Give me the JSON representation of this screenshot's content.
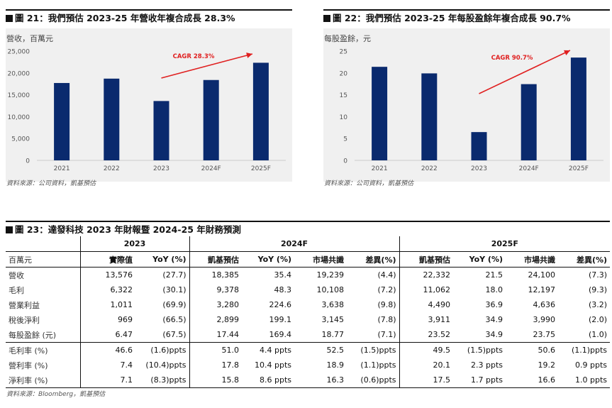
{
  "fig21": {
    "title": "圖 21：我們預估 2023-25 年營收年複合成長 28.3%",
    "unit": "營收，百萬元",
    "source": "資料來源：公司資料，凱基預估",
    "annotation": "CAGR 28.3%",
    "bar_color": "#0a2a6e",
    "arrow_color": "#e02020",
    "yticks": [
      "25,000",
      "20,000",
      "15,000",
      "10,000",
      "5,000",
      "0"
    ]
  },
  "fig22": {
    "title": "圖 22：我們預估 2023-25 年每股盈餘年複合成長 90.7%",
    "unit": "每股盈餘，元",
    "source": "資料來源：公司資料，凱基預估",
    "annotation": "CAGR 90.7%",
    "yticks": [
      "25",
      "20",
      "15",
      "10",
      "5",
      "0"
    ]
  },
  "chart_data": [
    {
      "type": "bar",
      "title": "圖 21：我們預估 2023-25 年營收年複合成長 28.3%",
      "ylabel": "營收，百萬元",
      "categories": [
        "2021",
        "2022",
        "2023",
        "2024F",
        "2025F"
      ],
      "values": [
        17700,
        18700,
        13576,
        18385,
        22332
      ],
      "ylim": [
        0,
        25000
      ],
      "grid": false,
      "annotation": "CAGR 28.3%"
    },
    {
      "type": "bar",
      "title": "圖 22：我們預估 2023-25 年每股盈餘年複合成長 90.7%",
      "ylabel": "每股盈餘，元",
      "categories": [
        "2021",
        "2022",
        "2023",
        "2024F",
        "2025F"
      ],
      "values": [
        21.4,
        19.9,
        6.47,
        17.44,
        23.52
      ],
      "ylim": [
        0,
        25
      ],
      "grid": false,
      "annotation": "CAGR 90.7%"
    }
  ],
  "table23": {
    "title": "圖 23：達發科技 2023 年財報暨 2024-25 年財務預測",
    "source": "資料來源：Bloomberg，凱基預估",
    "groups": [
      "2023",
      "2024F",
      "2025F"
    ],
    "unit_label": "百萬元",
    "columns": [
      "實際值",
      "YoY (%)",
      "凱基預估",
      "YoY (%)",
      "市場共識",
      "差異(%)",
      "凱基預估",
      "YoY (%)",
      "市場共識",
      "差異(%)"
    ],
    "rows": [
      {
        "label": "營收",
        "cells": [
          "13,576",
          "(27.7)",
          "18,385",
          "35.4",
          "19,239",
          "(4.4)",
          "22,332",
          "21.5",
          "24,100",
          "(7.3)"
        ]
      },
      {
        "label": "毛利",
        "cells": [
          "6,322",
          "(30.1)",
          "9,378",
          "48.3",
          "10,108",
          "(7.2)",
          "11,062",
          "18.0",
          "12,197",
          "(9.3)"
        ]
      },
      {
        "label": "營業利益",
        "cells": [
          "1,011",
          "(69.9)",
          "3,280",
          "224.6",
          "3,638",
          "(9.8)",
          "4,490",
          "36.9",
          "4,636",
          "(3.2)"
        ]
      },
      {
        "label": "稅後淨利",
        "cells": [
          "969",
          "(66.5)",
          "2,899",
          "199.1",
          "3,145",
          "(7.8)",
          "3,911",
          "34.9",
          "3,990",
          "(2.0)"
        ]
      },
      {
        "label": "每股盈餘 (元)",
        "cells": [
          "6.47",
          "(67.5)",
          "17.44",
          "169.4",
          "18.77",
          "(7.1)",
          "23.52",
          "34.9",
          "23.75",
          "(1.0)"
        ]
      },
      {
        "label": "毛利率 (%)",
        "cells": [
          "46.6",
          "(1.6)ppts",
          "51.0",
          "4.4 ppts",
          "52.5",
          "(1.5)ppts",
          "49.5",
          "(1.5)ppts",
          "50.6",
          "(1.1)ppts"
        ]
      },
      {
        "label": "營利率 (%)",
        "cells": [
          "7.4",
          "(10.4)ppts",
          "17.8",
          "10.4 ppts",
          "18.9",
          "(1.1)ppts",
          "20.1",
          "2.3 ppts",
          "19.2",
          "0.9 ppts"
        ]
      },
      {
        "label": "淨利率 (%)",
        "cells": [
          "7.1",
          "(8.3)ppts",
          "15.8",
          "8.6 ppts",
          "16.3",
          "(0.6)ppts",
          "17.5",
          "1.7 ppts",
          "16.6",
          "1.0 ppts"
        ]
      }
    ]
  }
}
